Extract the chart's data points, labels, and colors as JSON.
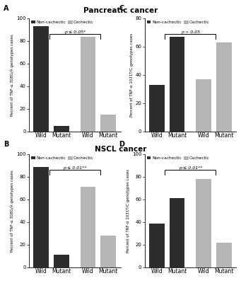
{
  "title_top": "Pancreatic cancer",
  "title_bottom": "NSCL cancer",
  "dark_color": "#2d2d2d",
  "light_color": "#b5b5b5",
  "panels": {
    "A": {
      "label": "A",
      "ylabel": "Percent of TNF-α 308G/A genotypes cases",
      "xtick_labels": [
        "Wild",
        "Mutant",
        "Wild",
        "Mutant"
      ],
      "values": [
        93,
        5,
        84,
        15
      ],
      "colors": [
        "dark",
        "dark",
        "light",
        "light"
      ],
      "ylim": [
        0,
        100
      ],
      "yticks": [
        0,
        20,
        40,
        60,
        80,
        100
      ],
      "sig_text": "p ≤ 0.05*",
      "legend_loc": "upper right"
    },
    "C": {
      "label": "C",
      "ylabel": "Percent of TNF-α 1031T/C genotypes cases",
      "xtick_labels": [
        "Wild",
        "Mutant",
        "Wild",
        "Mutant"
      ],
      "values": [
        33,
        67,
        37,
        63
      ],
      "colors": [
        "dark",
        "dark",
        "light",
        "light"
      ],
      "ylim": [
        0,
        80
      ],
      "yticks": [
        0,
        20,
        40,
        60,
        80
      ],
      "sig_text": "p > 0.05",
      "legend_loc": "upper right"
    },
    "B": {
      "label": "B",
      "ylabel": "Percent of TNF-α 308G/A genotypes cases",
      "xtick_labels": [
        "Wild",
        "Mutant",
        "Wild",
        "Mutant"
      ],
      "values": [
        89,
        11,
        71,
        28
      ],
      "colors": [
        "dark",
        "dark",
        "light",
        "light"
      ],
      "ylim": [
        0,
        100
      ],
      "yticks": [
        0,
        20,
        40,
        60,
        80,
        100
      ],
      "sig_text": "p ≤ 0.01**",
      "legend_loc": "upper right"
    },
    "D": {
      "label": "D",
      "ylabel": "Percent of TNF-α 1031T/C genotypes cases",
      "xtick_labels": [
        "Wild",
        "Mutant",
        "Wild",
        "Mutant"
      ],
      "values": [
        39,
        61,
        78,
        22
      ],
      "colors": [
        "dark",
        "dark",
        "light",
        "light"
      ],
      "ylim": [
        0,
        100
      ],
      "yticks": [
        0,
        20,
        40,
        60,
        80,
        100
      ],
      "sig_text": "p ≤ 0.01**",
      "legend_loc": "upper right"
    }
  }
}
